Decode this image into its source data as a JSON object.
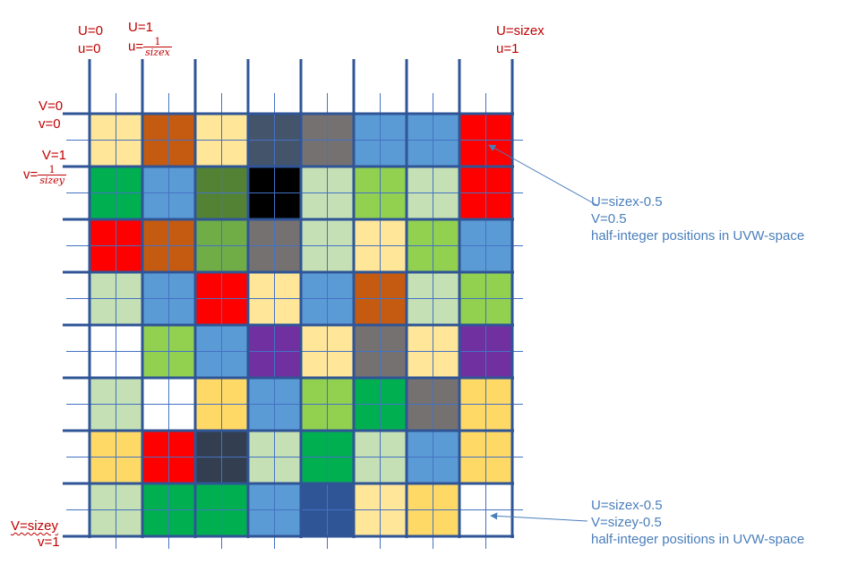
{
  "colors": {
    "grid_line": "#2f5597",
    "center_line": "#4472c4",
    "label_red": "#c00000",
    "annotation_blue": "#4a7ebb"
  },
  "palette": {
    "LY": "#ffe699",
    "OR": "#c55a11",
    "DS": "#44546a",
    "GR": "#767171",
    "MB": "#5b9bd5",
    "RD": "#ff0000",
    "GN": "#00b050",
    "DG": "#548235",
    "BK": "#000000",
    "LG": "#c5e0b4",
    "LM": "#92d050",
    "MG": "#70ad47",
    "WH": "#ffffff",
    "PU": "#7030a0",
    "GD": "#ffd966",
    "DN": "#333f50",
    "NB": "#2f5597"
  },
  "cells": [
    [
      "LY",
      "OR",
      "LY",
      "DS",
      "GR",
      "MB",
      "MB",
      "RD"
    ],
    [
      "GN",
      "MB",
      "DG",
      "BK",
      "LG",
      "LM",
      "LG",
      "RD"
    ],
    [
      "RD",
      "OR",
      "MG",
      "GR",
      "LG",
      "LY",
      "LM",
      "MB"
    ],
    [
      "LG",
      "MB",
      "RD",
      "LY",
      "MB",
      "OR",
      "LG",
      "LM"
    ],
    [
      "WH",
      "LM",
      "MB",
      "PU",
      "LY",
      "GR",
      "LY",
      "PU"
    ],
    [
      "LG",
      "WH",
      "GD",
      "MB",
      "LM",
      "GN",
      "GR",
      "GD"
    ],
    [
      "GD",
      "RD",
      "DN",
      "LG",
      "GN",
      "LG",
      "MB",
      "GD"
    ],
    [
      "LG",
      "GN",
      "GN",
      "MB",
      "NB",
      "LY",
      "GD",
      "WH"
    ]
  ],
  "labels": {
    "u_start_cap": "U=0",
    "u_start_low": "u=0",
    "u_one_cap": "U=1",
    "u_one_prefix": "u=",
    "u_one_num": "1",
    "u_one_den": "sizex",
    "u_end_cap": "U=sizex",
    "u_end_low": "u=1",
    "v_start_cap": "V=0",
    "v_start_low": "v=0",
    "v_one_cap": "V=1",
    "v_one_prefix": "v=",
    "v_one_num": "1",
    "v_one_den": "sizey",
    "v_end_cap": "V=sizey",
    "v_end_low": "v=1"
  },
  "annotations": {
    "top": {
      "line1": "U=sizex-0.5",
      "line2": "V=0.5",
      "line3": "half-integer positions in UVW-space"
    },
    "bottom": {
      "line1": "U=sizex-0.5",
      "line2": "V=sizey-0.5",
      "line3": "half-integer positions in UVW-space"
    }
  }
}
